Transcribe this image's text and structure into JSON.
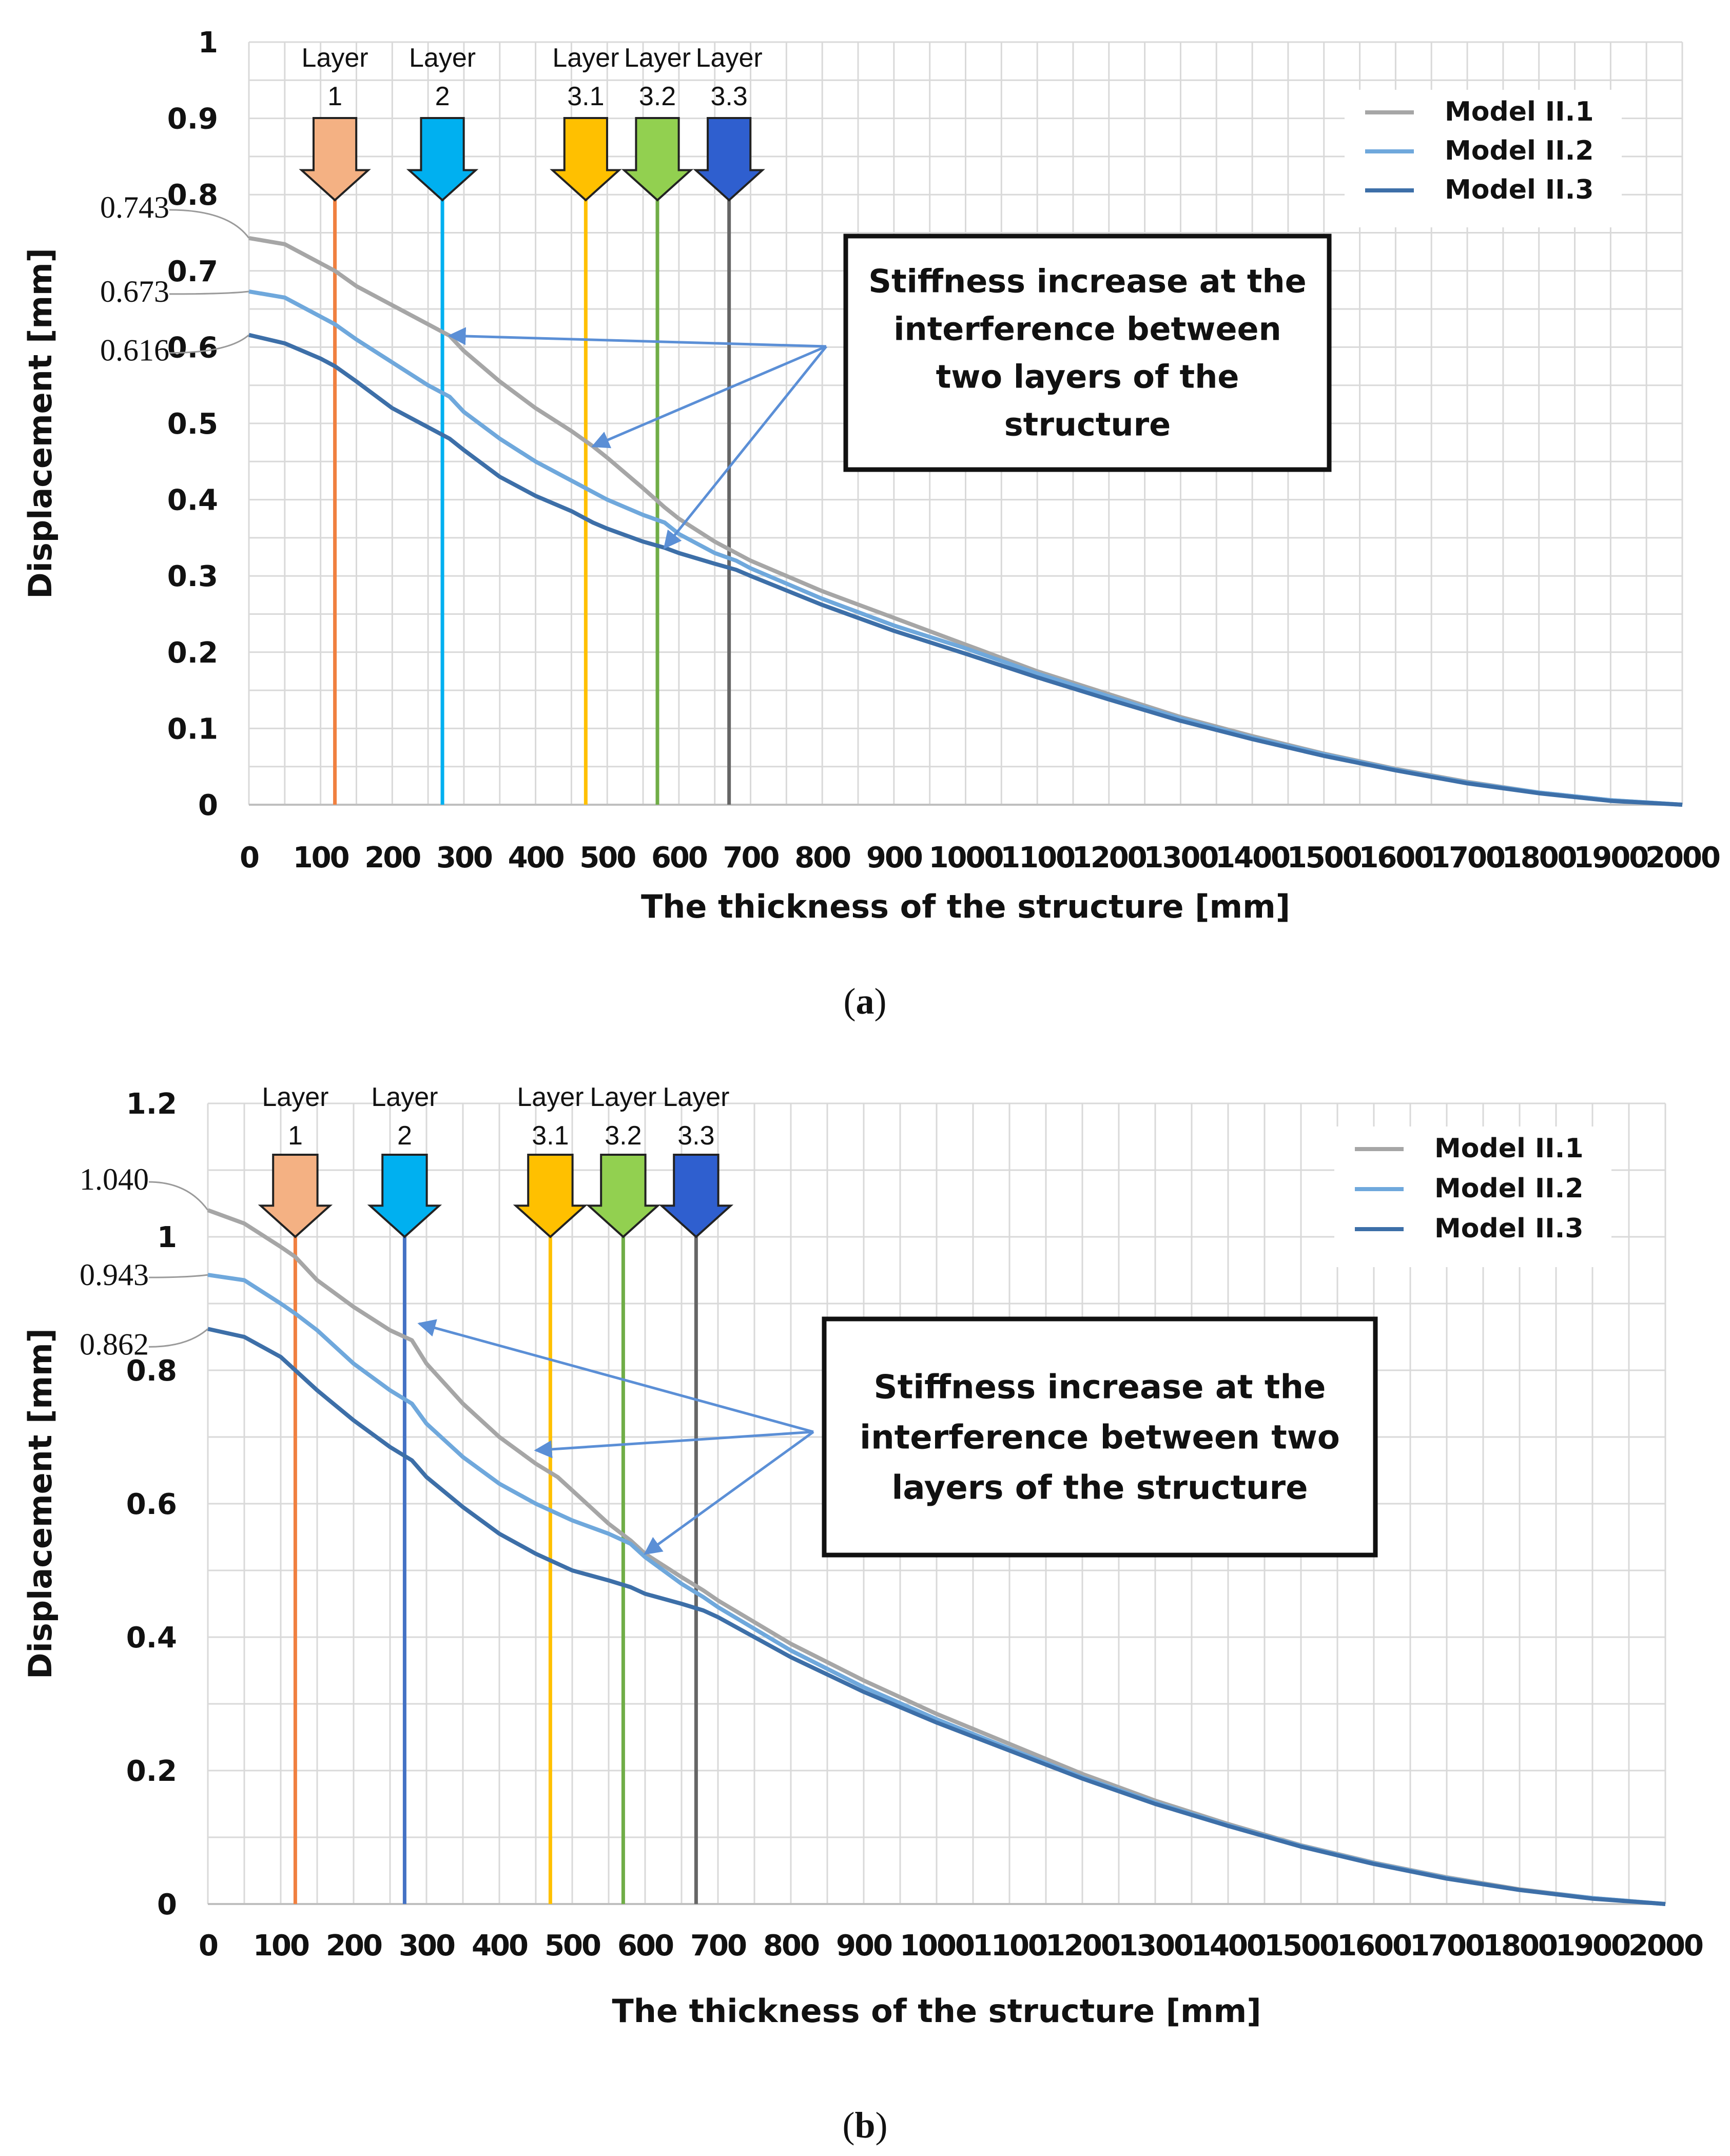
{
  "colors": {
    "model_1": "#a6a6a6",
    "model_2": "#6fa8dc",
    "model_3": "#3d6fa8",
    "grid": "#d9d9d9",
    "arrow": "#5b8fd6",
    "layer_1": "#f4b183",
    "layer_1_line": "#f08040",
    "layer_2": "#00b0f0",
    "layer_2_line": "#4472c4",
    "layer_31": "#ffc000",
    "layer_32": "#92d050",
    "layer_32_line": "#70ad47",
    "layer_33": "#2f5fcf",
    "layer_33_line": "#666666"
  },
  "chart_data": [
    {
      "id": "a",
      "type": "line",
      "caption_letter": "a",
      "xlabel": "The thickness of the structure [mm]",
      "ylabel": "Displacement [mm]",
      "xlim": [
        0,
        2000
      ],
      "ylim": [
        0,
        1
      ],
      "xticks": [
        "0",
        "100",
        "200",
        "300",
        "400",
        "500",
        "600",
        "700",
        "800",
        "900",
        "1000",
        "1100",
        "1200",
        "1300",
        "1400",
        "1500",
        "1600",
        "1700",
        "1800",
        "1900",
        "2000"
      ],
      "yticks": [
        "0",
        "0.1",
        "0.2",
        "0.3",
        "0.4",
        "0.5",
        "0.6",
        "0.7",
        "0.8",
        "0.9",
        "1"
      ],
      "ytick_values": [
        0,
        0.1,
        0.2,
        0.3,
        0.4,
        0.5,
        0.6,
        0.7,
        0.8,
        0.9,
        1
      ],
      "x": [
        0,
        50,
        100,
        120,
        150,
        200,
        250,
        280,
        300,
        350,
        400,
        450,
        480,
        500,
        550,
        580,
        600,
        650,
        680,
        700,
        800,
        900,
        1000,
        1100,
        1200,
        1300,
        1400,
        1500,
        1600,
        1700,
        1800,
        1900,
        2000
      ],
      "series": [
        {
          "name": "Model II.1",
          "values": [
            0.743,
            0.735,
            0.71,
            0.7,
            0.68,
            0.655,
            0.63,
            0.615,
            0.595,
            0.555,
            0.52,
            0.49,
            0.47,
            0.455,
            0.415,
            0.39,
            0.375,
            0.345,
            0.33,
            0.32,
            0.28,
            0.245,
            0.21,
            0.175,
            0.145,
            0.115,
            0.09,
            0.067,
            0.047,
            0.03,
            0.016,
            0.006,
            0.0
          ]
        },
        {
          "name": "Model II.2",
          "values": [
            0.673,
            0.665,
            0.64,
            0.63,
            0.61,
            0.58,
            0.55,
            0.535,
            0.515,
            0.48,
            0.45,
            0.425,
            0.41,
            0.4,
            0.38,
            0.37,
            0.355,
            0.33,
            0.32,
            0.31,
            0.27,
            0.235,
            0.205,
            0.172,
            0.142,
            0.113,
            0.088,
            0.066,
            0.046,
            0.029,
            0.016,
            0.006,
            0.0
          ]
        },
        {
          "name": "Model II.3",
          "values": [
            0.616,
            0.605,
            0.585,
            0.575,
            0.555,
            0.52,
            0.495,
            0.48,
            0.465,
            0.43,
            0.405,
            0.385,
            0.37,
            0.362,
            0.345,
            0.337,
            0.33,
            0.316,
            0.308,
            0.3,
            0.262,
            0.228,
            0.198,
            0.167,
            0.138,
            0.11,
            0.086,
            0.064,
            0.045,
            0.028,
            0.015,
            0.005,
            0.0
          ]
        }
      ],
      "start_callouts": [
        "0.743",
        "0.673",
        "0.616"
      ],
      "layers": [
        {
          "label_top": "Layer",
          "label_bottom": "1",
          "x": 120,
          "fill_key": "layer_1",
          "line_key": "layer_1_line"
        },
        {
          "label_top": "Layer",
          "label_bottom": "2",
          "x": 270,
          "fill_key": "layer_2",
          "line_key": "layer_2"
        },
        {
          "label_top": "Layer",
          "label_bottom": "3.1",
          "x": 470,
          "fill_key": "layer_31",
          "line_key": "layer_31"
        },
        {
          "label_top": "Layer",
          "label_bottom": "3.2",
          "x": 570,
          "fill_key": "layer_32",
          "line_key": "layer_32_line"
        },
        {
          "label_top": "Layer",
          "label_bottom": "3.3",
          "x": 670,
          "fill_key": "layer_33",
          "line_key": "layer_33_line"
        }
      ],
      "annotation": [
        "Stiffness increase at the",
        "interference between",
        "two layers of the",
        "structure"
      ],
      "annotation_targets": [
        [
          280,
          0.615
        ],
        [
          480,
          0.47
        ],
        [
          580,
          0.337
        ]
      ],
      "legend_position": "top-right"
    },
    {
      "id": "b",
      "type": "line",
      "caption_letter": "b",
      "xlabel": "The thickness of the structure [mm]",
      "ylabel": "Displacement [mm]",
      "xlim": [
        0,
        2000
      ],
      "ylim": [
        0,
        1.2
      ],
      "xticks": [
        "0",
        "100",
        "200",
        "300",
        "400",
        "500",
        "600",
        "700",
        "800",
        "900",
        "1000",
        "1100",
        "1200",
        "1300",
        "1400",
        "1500",
        "1600",
        "1700",
        "1800",
        "1900",
        "2000"
      ],
      "yticks": [
        "0",
        "0.2",
        "0.4",
        "0.6",
        "0.8",
        "1",
        "1.2"
      ],
      "ytick_values": [
        0,
        0.2,
        0.4,
        0.6,
        0.8,
        1,
        1.2
      ],
      "x": [
        0,
        50,
        100,
        120,
        150,
        200,
        250,
        280,
        300,
        350,
        400,
        450,
        480,
        500,
        550,
        580,
        600,
        650,
        680,
        700,
        800,
        900,
        1000,
        1100,
        1200,
        1300,
        1400,
        1500,
        1600,
        1700,
        1800,
        1900,
        2000
      ],
      "series": [
        {
          "name": "Model II.1",
          "values": [
            1.04,
            1.02,
            0.985,
            0.97,
            0.935,
            0.895,
            0.86,
            0.845,
            0.81,
            0.75,
            0.7,
            0.66,
            0.64,
            0.62,
            0.57,
            0.545,
            0.525,
            0.49,
            0.47,
            0.455,
            0.39,
            0.335,
            0.285,
            0.24,
            0.195,
            0.155,
            0.12,
            0.088,
            0.062,
            0.04,
            0.022,
            0.009,
            0.0
          ]
        },
        {
          "name": "Model II.2",
          "values": [
            0.943,
            0.935,
            0.9,
            0.885,
            0.86,
            0.81,
            0.77,
            0.75,
            0.72,
            0.67,
            0.63,
            0.6,
            0.585,
            0.575,
            0.555,
            0.54,
            0.52,
            0.48,
            0.46,
            0.445,
            0.38,
            0.325,
            0.277,
            0.233,
            0.19,
            0.152,
            0.118,
            0.087,
            0.061,
            0.039,
            0.021,
            0.009,
            0.0
          ]
        },
        {
          "name": "Model II.3",
          "values": [
            0.862,
            0.85,
            0.82,
            0.8,
            0.77,
            0.725,
            0.685,
            0.665,
            0.64,
            0.595,
            0.555,
            0.525,
            0.51,
            0.5,
            0.485,
            0.475,
            0.465,
            0.45,
            0.44,
            0.43,
            0.37,
            0.318,
            0.272,
            0.23,
            0.188,
            0.15,
            0.117,
            0.086,
            0.06,
            0.038,
            0.021,
            0.008,
            0.0
          ]
        }
      ],
      "start_callouts": [
        "1.040",
        "0.943",
        "0.862"
      ],
      "layers": [
        {
          "label_top": "Layer",
          "label_bottom": "1",
          "x": 120,
          "fill_key": "layer_1",
          "line_key": "layer_1_line"
        },
        {
          "label_top": "Layer",
          "label_bottom": "2",
          "x": 270,
          "fill_key": "layer_2",
          "line_key": "layer_2_line"
        },
        {
          "label_top": "Layer",
          "label_bottom": "3.1",
          "x": 470,
          "fill_key": "layer_31",
          "line_key": "layer_31"
        },
        {
          "label_top": "Layer",
          "label_bottom": "3.2",
          "x": 570,
          "fill_key": "layer_32",
          "line_key": "layer_32_line"
        },
        {
          "label_top": "Layer",
          "label_bottom": "3.3",
          "x": 670,
          "fill_key": "layer_33",
          "line_key": "layer_33_line"
        }
      ],
      "annotation": [
        "Stiffness increase at the",
        "interference between two",
        "layers of the structure"
      ],
      "annotation_targets": [
        [
          290,
          0.87
        ],
        [
          450,
          0.68
        ],
        [
          600,
          0.525
        ]
      ],
      "legend_position": "top-right"
    }
  ]
}
